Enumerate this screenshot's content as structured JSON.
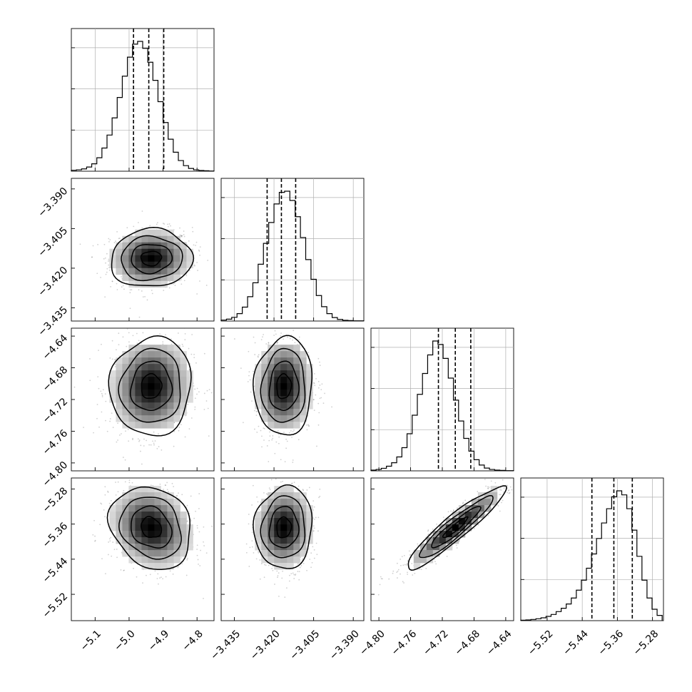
{
  "chart_data": {
    "type": "corner",
    "grid": true,
    "parameters": 4,
    "marginals": [
      {
        "range": [
          -5.17,
          -4.75
        ],
        "ticks": [
          -5.1,
          -5.0,
          -4.9,
          -4.8
        ],
        "tick_labels": [
          "−5.1",
          "−5.0",
          "−4.9",
          "−4.8"
        ],
        "quantiles": [
          -4.987,
          -4.942,
          -4.898
        ],
        "y_fraction_grid": [
          0.33,
          0.66,
          0.99
        ],
        "bin_edges": [
          -5.17,
          -5.155,
          -5.14,
          -5.125,
          -5.11,
          -5.095,
          -5.08,
          -5.065,
          -5.05,
          -5.035,
          -5.02,
          -5.005,
          -4.99,
          -4.975,
          -4.96,
          -4.945,
          -4.93,
          -4.915,
          -4.9,
          -4.885,
          -4.87,
          -4.855,
          -4.84,
          -4.825,
          -4.81,
          -4.795,
          -4.78,
          -4.765,
          -4.75
        ],
        "counts": [
          4,
          6,
          10,
          18,
          32,
          58,
          100,
          156,
          230,
          318,
          410,
          492,
          548,
          560,
          530,
          470,
          392,
          300,
          210,
          138,
          82,
          46,
          24,
          12,
          6,
          3,
          2,
          1
        ]
      },
      {
        "range": [
          -3.44,
          -3.386
        ],
        "ticks": [
          -3.435,
          -3.42,
          -3.405,
          -3.39
        ],
        "tick_labels": [
          "−3.435",
          "−3.420",
          "−3.405",
          "−3.390"
        ],
        "quantiles": [
          -3.4226,
          -3.4172,
          -3.4118
        ],
        "y_fraction_grid": [
          0.33,
          0.66,
          0.99
        ],
        "bin_edges": [
          -3.44,
          -3.438,
          -3.436,
          -3.434,
          -3.432,
          -3.43,
          -3.428,
          -3.426,
          -3.424,
          -3.422,
          -3.42,
          -3.418,
          -3.416,
          -3.414,
          -3.412,
          -3.41,
          -3.408,
          -3.406,
          -3.404,
          -3.402,
          -3.4,
          -3.398,
          -3.396,
          -3.394,
          -3.392,
          -3.39,
          -3.388,
          -3.386
        ],
        "counts": [
          4,
          8,
          16,
          32,
          60,
          105,
          165,
          245,
          335,
          425,
          505,
          555,
          560,
          520,
          450,
          360,
          265,
          180,
          110,
          62,
          32,
          15,
          7,
          3,
          2,
          1,
          1
        ]
      },
      {
        "range": [
          -4.81,
          -4.63
        ],
        "ticks": [
          -4.8,
          -4.76,
          -4.72,
          -4.68,
          -4.64
        ],
        "tick_labels": [
          "−4.80",
          "−4.76",
          "−4.72",
          "−4.68",
          "−4.64"
        ],
        "quantiles": [
          -4.7249,
          -4.7036,
          -4.6841
        ],
        "y_fraction_grid": [
          0.33,
          0.66,
          0.99
        ],
        "bin_edges": [
          -4.81,
          -4.8035,
          -4.797,
          -4.7905,
          -4.784,
          -4.7775,
          -4.771,
          -4.7645,
          -4.758,
          -4.7515,
          -4.745,
          -4.7385,
          -4.732,
          -4.7255,
          -4.719,
          -4.7125,
          -4.706,
          -4.6995,
          -4.693,
          -4.6865,
          -4.68,
          -4.6735,
          -4.667,
          -4.6605,
          -4.654,
          -4.6475,
          -4.641,
          -4.6345,
          -4.63
        ],
        "counts": [
          3,
          6,
          11,
          20,
          35,
          60,
          100,
          160,
          240,
          330,
          420,
          500,
          560,
          545,
          485,
          400,
          305,
          215,
          140,
          85,
          48,
          25,
          12,
          6,
          3,
          2,
          1,
          1
        ]
      },
      {
        "range": [
          -5.58,
          -5.255
        ],
        "ticks": [
          -5.52,
          -5.44,
          -5.36,
          -5.28
        ],
        "tick_labels": [
          "−5.52",
          "−5.44",
          "−5.36",
          "−5.28"
        ],
        "quantiles": [
          -5.418,
          -5.368,
          -5.326
        ],
        "y_fraction_grid": [
          0.33,
          0.66,
          0.99
        ],
        "bin_edges": [
          -5.58,
          -5.5685,
          -5.557,
          -5.5455,
          -5.534,
          -5.5225,
          -5.511,
          -5.4995,
          -5.488,
          -5.4765,
          -5.465,
          -5.4535,
          -5.442,
          -5.4305,
          -5.419,
          -5.4075,
          -5.396,
          -5.3845,
          -5.373,
          -5.3615,
          -5.35,
          -5.3385,
          -5.327,
          -5.3155,
          -5.304,
          -5.2925,
          -5.281,
          -5.2695,
          -5.258
        ],
        "counts": [
          2,
          3,
          5,
          8,
          12,
          18,
          26,
          38,
          52,
          70,
          95,
          128,
          170,
          220,
          280,
          345,
          410,
          470,
          520,
          545,
          528,
          470,
          380,
          270,
          170,
          95,
          48,
          22
        ]
      }
    ],
    "pairs": [
      {
        "x_param": 0,
        "y_param": 1,
        "mean": [
          -4.935,
          -3.4163
        ],
        "sd": [
          0.06,
          0.0055
        ],
        "corr": 0.05
      },
      {
        "x_param": 0,
        "y_param": 2,
        "mean": [
          -4.935,
          -4.7035
        ],
        "sd": [
          0.06,
          0.031
        ],
        "corr": 0.05
      },
      {
        "x_param": 1,
        "y_param": 2,
        "mean": [
          -3.4163,
          -4.7035
        ],
        "sd": [
          0.0055,
          0.031
        ],
        "corr": 0.05
      },
      {
        "x_param": 0,
        "y_param": 3,
        "mean": [
          -4.935,
          -5.368
        ],
        "sd": [
          0.06,
          0.047
        ],
        "corr": -0.18
      },
      {
        "x_param": 1,
        "y_param": 3,
        "mean": [
          -3.4163,
          -5.368
        ],
        "sd": [
          0.0055,
          0.047
        ],
        "corr": 0.05
      },
      {
        "x_param": 2,
        "y_param": 3,
        "mean": [
          -4.7035,
          -5.368
        ],
        "sd": [
          0.031,
          0.047
        ],
        "corr": 0.93
      }
    ],
    "contour_levels_sigma": [
      0.5,
      1.0,
      1.5,
      2.0
    ]
  }
}
